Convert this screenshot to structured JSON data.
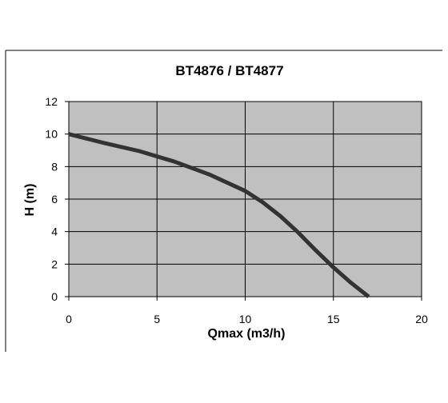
{
  "chart_data": {
    "type": "line",
    "title": "BT4876 / BT4877",
    "xlabel": "Qmax (m3/h)",
    "ylabel": "H (m)",
    "xlim": [
      0,
      20
    ],
    "ylim": [
      0,
      12
    ],
    "xticks": [
      0,
      5,
      10,
      15,
      20
    ],
    "yticks": [
      0,
      2,
      4,
      6,
      8,
      10,
      12
    ],
    "grid": true,
    "legend": "none",
    "colors": {
      "plot_background": "#c0c0c0",
      "line": "#333333",
      "grid": "#000000",
      "frame": "#000000"
    },
    "series": [
      {
        "x": [
          0,
          2,
          4,
          6,
          8,
          10,
          11,
          12,
          13,
          14,
          15,
          16,
          17
        ],
        "y": [
          10,
          9.45,
          8.95,
          8.3,
          7.5,
          6.5,
          5.8,
          4.95,
          3.95,
          2.85,
          1.8,
          0.85,
          0
        ]
      }
    ]
  }
}
